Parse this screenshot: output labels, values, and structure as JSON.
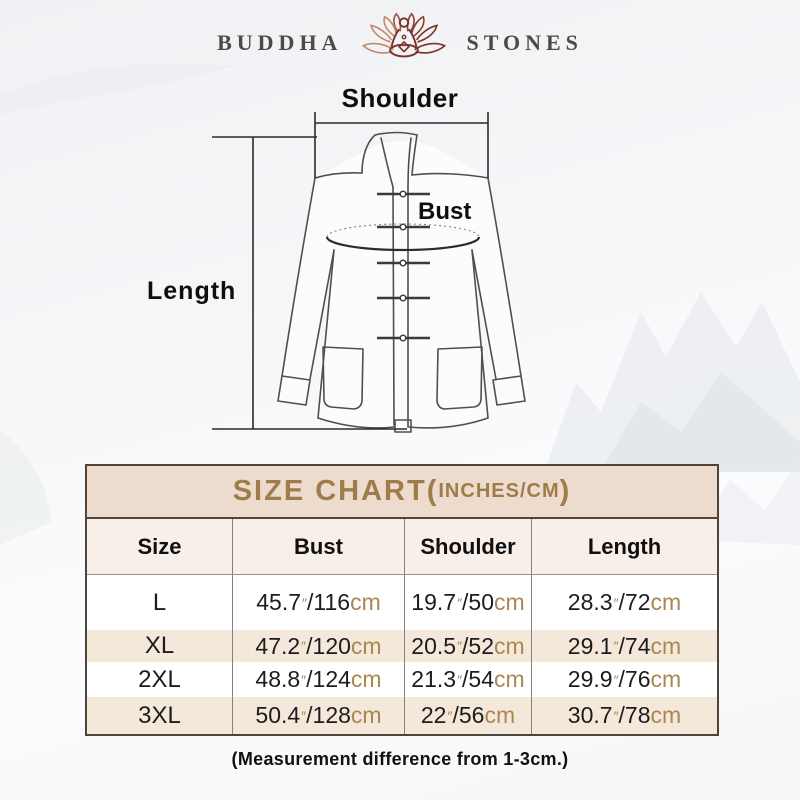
{
  "brand": {
    "left": "BUDDHA",
    "right": "STONES"
  },
  "diagram": {
    "labels": {
      "shoulder": "Shoulder",
      "bust": "Bust",
      "length": "Length"
    }
  },
  "size_chart": {
    "title_main": "SIZE CHART(",
    "title_sub": "INCHES/CM",
    "title_close": ")",
    "columns": [
      "Size",
      "Bust",
      "Shoulder",
      "Length"
    ],
    "units": {
      "inch_mark": "″",
      "separator": "/",
      "cm": "cm"
    },
    "rows": [
      {
        "size": "L",
        "bust": {
          "in": "45.7",
          "cm": "116"
        },
        "shoulder": {
          "in": "19.7",
          "cm": "50"
        },
        "length": {
          "in": "28.3",
          "cm": "72"
        }
      },
      {
        "size": "XL",
        "bust": {
          "in": "47.2",
          "cm": "120"
        },
        "shoulder": {
          "in": "20.5",
          "cm": "52"
        },
        "length": {
          "in": "29.1",
          "cm": "74"
        }
      },
      {
        "size": "2XL",
        "bust": {
          "in": "48.8",
          "cm": "124"
        },
        "shoulder": {
          "in": "21.3",
          "cm": "54"
        },
        "length": {
          "in": "29.9",
          "cm": "76"
        }
      },
      {
        "size": "3XL",
        "bust": {
          "in": "50.4",
          "cm": "128"
        },
        "shoulder": {
          "in": "22",
          "cm": "56"
        },
        "length": {
          "in": "30.7",
          "cm": "78"
        }
      }
    ]
  },
  "footnote": "(Measurement difference from 1-3cm.)",
  "colors": {
    "table_border": "#4f443a",
    "title_band_bg": "#eddbcd",
    "title_text": "#9f7c49",
    "alt_row_bg": "#f4e8db",
    "unit_text": "#ab8750",
    "logo_accent_dark": "#7c3429",
    "logo_accent_light": "#c58a68"
  },
  "chart_data": {
    "type": "table",
    "title": "SIZE CHART(INCHES/CM)",
    "columns": [
      "Size",
      "Bust",
      "Shoulder",
      "Length"
    ],
    "rows": [
      [
        "L",
        "45.7″/116cm",
        "19.7″/50cm",
        "28.3″/72cm"
      ],
      [
        "XL",
        "47.2″/120cm",
        "20.5″/52cm",
        "29.1″/74cm"
      ],
      [
        "2XL",
        "48.8″/124cm",
        "21.3″/54cm",
        "29.9″/76cm"
      ],
      [
        "3XL",
        "50.4″/128cm",
        "22″/56cm",
        "30.7″/78cm"
      ]
    ],
    "note": "(Measurement difference from 1-3cm.)"
  }
}
